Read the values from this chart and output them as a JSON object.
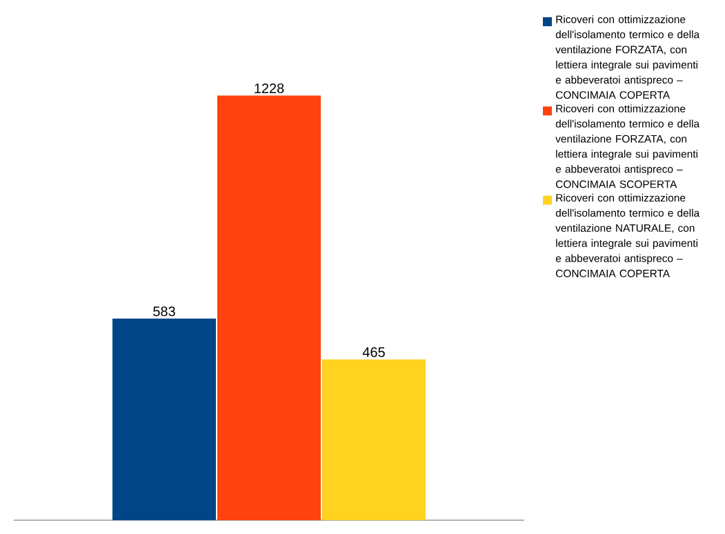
{
  "chart_data": {
    "type": "bar",
    "categories": [
      null
    ],
    "series": [
      {
        "name": "Ricoveri con ottimizzazione dell'isolamento termico e della ventilazione FORZATA, con lettiera integrale sui pavimenti e abbeveratoi antispreco – CONCIMAIA COPERTA",
        "color": "#004586",
        "values": [
          583
        ]
      },
      {
        "name": "Ricoveri con ottimizzazione dell'isolamento termico e della ventilazione FORZATA, con lettiera integrale sui pavimenti e abbeveratoi antispreco – CONCIMAIA SCOPERTA",
        "color": "#ff420e",
        "values": [
          1228
        ]
      },
      {
        "name": "Ricoveri con ottimizzazione dell'isolamento termico e della ventilazione NATURALE, con lettiera integrale sui pavimenti e abbeveratoi antispreco – CONCIMAIA COPERTA",
        "color": "#ffd320",
        "values": [
          465
        ]
      }
    ],
    "data_labels": true,
    "legend": "right"
  }
}
